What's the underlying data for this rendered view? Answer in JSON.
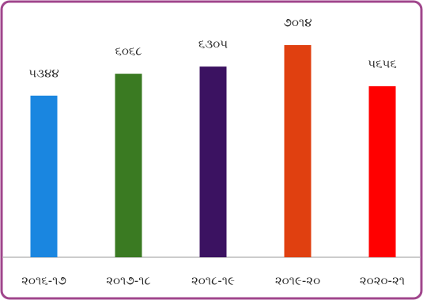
{
  "chart_data": {
    "type": "bar",
    "categories": [
      "૨૦૧૬-૧૭",
      "૨૦૧૭-૧૮",
      "૨૦૧૮-૧૯",
      "૨૦૧૯-૨૦",
      "૨૦૨૦-૨૧"
    ],
    "values": [
      5344,
      6068,
      6305,
      7014,
      5656
    ],
    "value_labels": [
      "૫૩૪૪",
      "૬૦૬૮",
      "૬૩૦૫",
      "૭૦૧૪",
      "૫૬૫૬"
    ],
    "colors": [
      "#1a86e0",
      "#3a7a22",
      "#3b1261",
      "#e04010",
      "#ff0000"
    ]
  }
}
